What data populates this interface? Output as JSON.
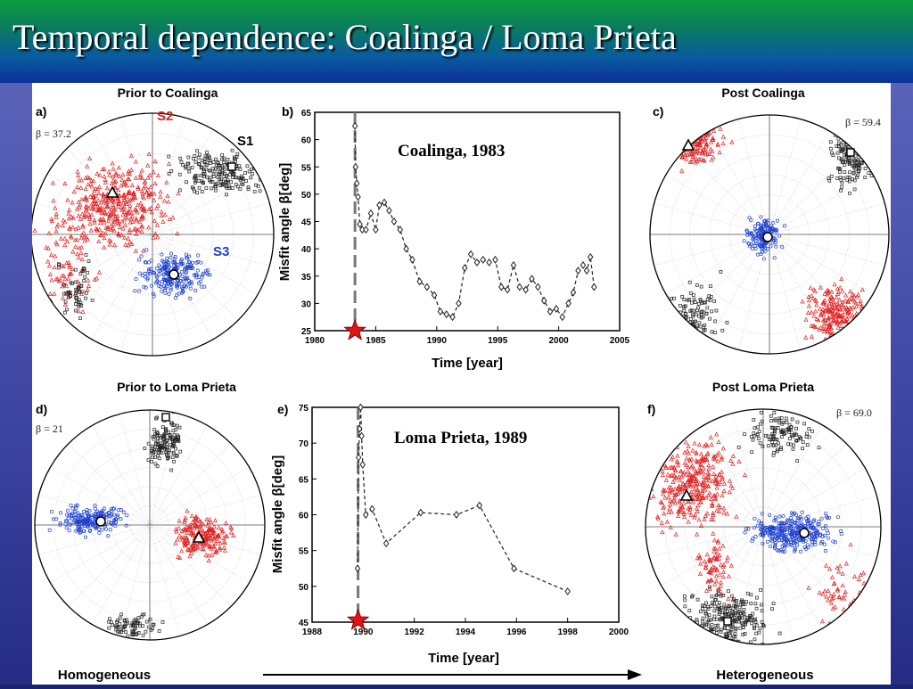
{
  "slide": {
    "title": "Temporal dependence: Coalinga / Loma Prieta",
    "footer_left": "Homogeneous",
    "footer_right": "Heterogeneous",
    "colors": {
      "title_bg_top": "#0a9e3c",
      "title_bg_bottom": "#0b2f9a",
      "frame": "#3b43a0"
    }
  },
  "stereonets": [
    {
      "id": "a",
      "panel_label": "a)",
      "title": "Prior to Coalinga",
      "beta": "β = 37.2",
      "stress_labels": {
        "s1": "S1",
        "s2": "S2",
        "s3": "S3"
      }
    },
    {
      "id": "c",
      "panel_label": "c)",
      "title": "Post Coalinga",
      "beta": "β = 59.4"
    },
    {
      "id": "d",
      "panel_label": "d)",
      "title": "Prior to Loma Prieta",
      "beta": "β = 21"
    },
    {
      "id": "f",
      "panel_label": "f)",
      "title": "Post Loma Prieta",
      "beta": "β = 69.0"
    }
  ],
  "chart_data": [
    {
      "type": "line",
      "panel_label": "b)",
      "annotation": "Coalinga, 1983",
      "xlabel": "Time [year]",
      "ylabel": "Misfit angle β[deg]",
      "xlim": [
        1980,
        2005
      ],
      "ylim": [
        25,
        65
      ],
      "xticks": [
        1980,
        1985,
        1990,
        1995,
        2000,
        2005
      ],
      "yticks": [
        25,
        30,
        35,
        40,
        45,
        50,
        55,
        60,
        65
      ],
      "event_year": 1983.3,
      "x": [
        1983.3,
        1983.35,
        1983.45,
        1983.55,
        1983.7,
        1983.9,
        1984.2,
        1984.6,
        1985.0,
        1985.3,
        1985.7,
        1986.1,
        1986.5,
        1987.0,
        1987.5,
        1988.0,
        1988.6,
        1989.2,
        1989.8,
        1990.3,
        1990.8,
        1991.3,
        1991.8,
        1992.3,
        1992.8,
        1993.3,
        1993.8,
        1994.3,
        1994.8,
        1995.3,
        1995.8,
        1996.3,
        1996.8,
        1997.3,
        1997.8,
        1998.3,
        1998.8,
        1999.3,
        1999.8,
        2000.3,
        2000.8,
        2001.2,
        2001.6,
        2002.0,
        2002.3,
        2002.6,
        2002.9
      ],
      "y": [
        62.5,
        55,
        52,
        49.5,
        44.5,
        43.5,
        43.5,
        46.5,
        43.5,
        48,
        48.5,
        47,
        45,
        43.5,
        40,
        38,
        34,
        33,
        31.5,
        28.5,
        28,
        27.5,
        30,
        36.5,
        39,
        37.5,
        38,
        37.5,
        38,
        33,
        32.5,
        37,
        33,
        32.5,
        34.5,
        33,
        30.5,
        28.5,
        29,
        27.5,
        30,
        32,
        36,
        37,
        36,
        38.5,
        33
      ]
    },
    {
      "type": "line",
      "panel_label": "e)",
      "annotation": "Loma Prieta, 1989",
      "xlabel": "Time [year]",
      "ylabel": "Misfit angle β[deg]",
      "xlim": [
        1988,
        2000
      ],
      "ylim": [
        45,
        75
      ],
      "xticks": [
        1988,
        1990,
        1992,
        1994,
        1996,
        1998,
        2000
      ],
      "yticks": [
        45,
        50,
        55,
        60,
        65,
        70,
        75
      ],
      "event_year": 1989.8,
      "x": [
        1989.78,
        1989.82,
        1989.86,
        1989.9,
        1989.94,
        1989.98,
        1990.1,
        1990.35,
        1990.9,
        1992.25,
        1993.65,
        1994.55,
        1995.9,
        1998.0
      ],
      "y": [
        52.5,
        68,
        72,
        75,
        71,
        67,
        60,
        60.8,
        56,
        60.3,
        60,
        61.3,
        52.5,
        49.3
      ]
    }
  ]
}
